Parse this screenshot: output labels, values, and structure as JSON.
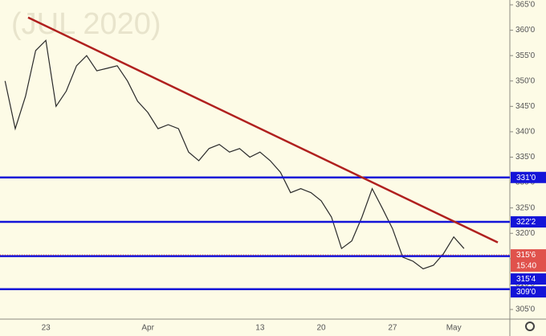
{
  "chart_data": {
    "type": "line",
    "watermark": "(JUL 2020)",
    "categories": [
      null,
      null,
      null,
      null,
      "23",
      null,
      null,
      null,
      null,
      null,
      null,
      null,
      null,
      null,
      "Apr",
      null,
      null,
      null,
      null,
      null,
      null,
      null,
      null,
      null,
      null,
      "13",
      null,
      null,
      null,
      null,
      null,
      "20",
      null,
      null,
      null,
      null,
      null,
      null,
      "27",
      null,
      null,
      null,
      null,
      null,
      "May",
      null,
      null,
      null,
      null,
      null
    ],
    "series": [
      {
        "color": "#2a2a2a",
        "values": [
          350,
          340.6,
          347,
          356,
          358,
          345,
          348,
          353,
          355,
          352,
          352.5,
          353,
          350,
          346,
          343.8,
          340.6,
          341.4,
          340.6,
          336,
          334.3,
          336.7,
          337.5,
          336,
          336.7,
          335,
          336,
          334.3,
          332,
          328,
          328.8,
          328,
          326.4,
          323.2,
          317,
          318.5,
          323.2,
          328.8,
          324.9,
          320.9,
          315.3,
          314.5,
          313,
          313.7,
          316,
          319.3,
          317,
          null,
          null,
          null,
          null
        ]
      }
    ],
    "ylim": [
      303.1,
      365.95
    ],
    "yticks": [
      {
        "value": 305,
        "label": "305'0"
      },
      {
        "value": 310,
        "label": "310'0"
      },
      {
        "value": 315,
        "label": "315'0"
      },
      {
        "value": 320,
        "label": "320'0"
      },
      {
        "value": 325,
        "label": "325'0"
      },
      {
        "value": 330,
        "label": "330'0"
      },
      {
        "value": 335,
        "label": "335'0"
      },
      {
        "value": 340,
        "label": "340'0"
      },
      {
        "value": 345,
        "label": "345'0"
      },
      {
        "value": 350,
        "label": "350'0"
      },
      {
        "value": 355,
        "label": "355'0"
      },
      {
        "value": 360,
        "label": "360'0"
      },
      {
        "value": 365,
        "label": "365'0"
      }
    ],
    "levels": [
      {
        "value": 331,
        "label": "331'0"
      },
      {
        "value": 322.25,
        "label": "322'2"
      },
      {
        "value": 315.5,
        "label": "315'4"
      },
      {
        "value": 309,
        "label": "309'0"
      }
    ],
    "level_color": "#1414d8",
    "last_price": {
      "value": 315.75,
      "label": "315'6",
      "countdown": "15:40",
      "color": "#e0524c"
    },
    "trendline": {
      "values": [
        362.5,
        318.2
      ],
      "color": "#b0201e"
    }
  }
}
